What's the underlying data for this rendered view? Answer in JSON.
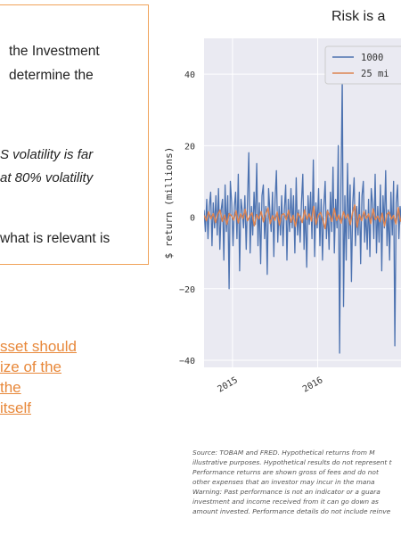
{
  "box_lines": [
    "the Investment",
    "determine the",
    "S volatility is far",
    "at 80% volatility",
    "what is relevant is"
  ],
  "orange_lines": [
    "sset should",
    "ize of the",
    " the",
    " itself"
  ],
  "source_lines": [
    "Source: TOBAM and FRED. Hypothetical returns from M",
    "illustrative purposes. Hypothetical results do not represent t",
    "Performance returns are shown gross of fees and do not",
    "other expenses that an investor may incur in the mana",
    "Warning: Past performance is not an indicator or a guara",
    "investment and income received from it can go down as",
    "amount invested. Performance details do not include reinve"
  ],
  "colors": {
    "accent": "#e8883a",
    "series_1": "#4c72b0",
    "series_2": "#dd8452",
    "panel": "#eaeaf2"
  },
  "chart_data": {
    "type": "line",
    "title": "Risk is a",
    "ylabel": "$ return (millions)",
    "xlabel": "",
    "ylim": [
      -42,
      50
    ],
    "x_range": [
      "2014-09-01",
      "2016-12-31"
    ],
    "yticks": [
      -40,
      -20,
      0,
      20,
      40
    ],
    "xticks": [
      {
        "label": "2015",
        "x": "2015-01-01"
      },
      {
        "label": "2016",
        "x": "2016-01-01"
      }
    ],
    "grid": true,
    "legend": "top-right",
    "series": [
      {
        "name": "1000",
        "color": "#4c72b0",
        "x_start": "2014-09-01",
        "x_end": "2016-12-31",
        "values": [
          2,
          -4,
          5,
          -6,
          3,
          7,
          -8,
          4,
          -3,
          6,
          -5,
          8,
          -9,
          2,
          5,
          -12,
          9,
          -4,
          6,
          -20,
          10,
          4,
          -8,
          3,
          7,
          -6,
          12,
          -15,
          5,
          2,
          -3,
          6,
          -9,
          4,
          18,
          -10,
          3,
          -5,
          7,
          -2,
          15,
          -8,
          4,
          -13,
          6,
          9,
          -6,
          3,
          -16,
          8,
          2,
          -4,
          7,
          -11,
          5,
          13,
          -7,
          3,
          -5,
          6,
          -8,
          2,
          9,
          -12,
          5,
          -4,
          8,
          -3,
          6,
          -10,
          11,
          -5,
          2,
          -7,
          4,
          12,
          -9,
          3,
          -14,
          6,
          -2,
          7,
          -6,
          16,
          -11,
          4,
          -3,
          8,
          -8,
          5,
          -12,
          3,
          10,
          -6,
          2,
          -9,
          7,
          -4,
          14,
          -10,
          5,
          -3,
          20,
          -38,
          8,
          39,
          -25,
          6,
          -12,
          15,
          -6,
          9,
          -18,
          4,
          11,
          -8,
          3,
          -5,
          7,
          -13,
          6,
          10,
          -7,
          2,
          -9,
          5,
          -11,
          8,
          4,
          -6,
          12,
          -10,
          3,
          -7,
          9,
          -15,
          6,
          -3,
          13,
          -8,
          2,
          -12,
          7,
          -5,
          10,
          -36,
          4,
          9,
          -6,
          3,
          -2,
          5
        ]
      },
      {
        "name": "25 mi",
        "color": "#dd8452",
        "x_start": "2014-09-01",
        "x_end": "2016-12-31",
        "values": [
          0.5,
          -1,
          1.5,
          -0.5,
          1,
          -1.5,
          0.8,
          2,
          -1.2,
          0.6,
          -2,
          1,
          0.4,
          -0.8,
          1.8,
          -1.6,
          0.9,
          -0.4,
          2.2,
          -1,
          0.3,
          1.2,
          -2.4,
          0.7,
          -0.5,
          1.6,
          -1.3,
          0.8,
          2.6,
          -1.8,
          0.4,
          -0.9,
          1.4,
          -2.2,
          0.6,
          1,
          -0.7,
          1.9,
          -1.4,
          0.5,
          -2.6,
          1.1,
          0.2,
          -1.5,
          2,
          -0.6,
          0.9,
          -1.1,
          3,
          -2,
          0.5,
          1.3,
          -0.8,
          -3.2,
          1.7,
          0.4,
          -1.2,
          2.4,
          -0.9,
          0.6,
          -1.7,
          1.5,
          -0.3,
          0.8,
          -2.1,
          1.2,
          3.4,
          -2.8,
          0.7,
          -1,
          1.6,
          -0.4,
          0.9,
          -1.8,
          2.3,
          -0.7,
          0.3,
          -1.3,
          1.1,
          -2.5,
          0.8,
          1.4,
          -0.6,
          0.5,
          -1.9,
          2.7,
          -1.1,
          0.4
        ]
      }
    ]
  }
}
